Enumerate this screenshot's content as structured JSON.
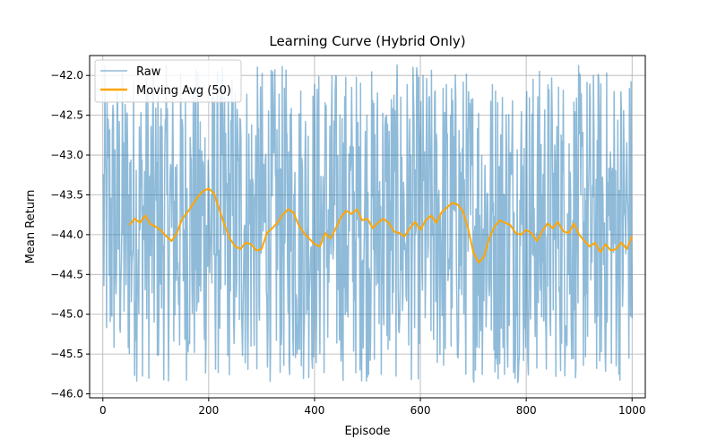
{
  "chart_data": {
    "type": "line",
    "title": "Learning Curve (Hybrid Only)",
    "xlabel": "Episode",
    "ylabel": "Mean Return",
    "xlim": [
      -25,
      1025
    ],
    "ylim": [
      -46.05,
      -41.75
    ],
    "xticks": [
      0,
      200,
      400,
      600,
      800,
      1000
    ],
    "yticks": [
      -46.0,
      -45.5,
      -45.0,
      -44.5,
      -44.0,
      -43.5,
      -43.0,
      -42.5,
      -42.0
    ],
    "xtick_labels": [
      "0",
      "200",
      "400",
      "600",
      "800",
      "1000"
    ],
    "ytick_labels": [
      "−46.0",
      "−45.5",
      "−45.0",
      "−44.5",
      "−44.0",
      "−43.5",
      "−43.0",
      "−42.5",
      "−42.0"
    ],
    "grid": true,
    "legend_position": "top-left",
    "colors": {
      "raw": "#1f77b4",
      "moving_avg": "#ffa500",
      "grid": "#b0b0b0"
    },
    "raw_series": {
      "name": "Raw",
      "x_start": 1,
      "x_end": 1000,
      "count": 1000,
      "min": -45.86,
      "max": -41.86,
      "mean": -43.97,
      "note": "noisy per-episode values spanning roughly -45.8 to -41.9"
    },
    "series": [
      {
        "name": "Moving Avg (50)",
        "x": [
          50,
          60,
          70,
          80,
          90,
          100,
          110,
          120,
          130,
          140,
          150,
          160,
          170,
          180,
          190,
          200,
          210,
          220,
          230,
          240,
          250,
          260,
          270,
          280,
          290,
          300,
          310,
          320,
          330,
          340,
          350,
          360,
          370,
          380,
          390,
          400,
          410,
          420,
          430,
          440,
          450,
          460,
          470,
          480,
          490,
          500,
          510,
          520,
          530,
          540,
          550,
          560,
          570,
          580,
          590,
          600,
          610,
          620,
          630,
          640,
          650,
          660,
          670,
          680,
          690,
          700,
          710,
          720,
          730,
          740,
          750,
          760,
          770,
          780,
          790,
          800,
          810,
          820,
          830,
          840,
          850,
          860,
          870,
          880,
          890,
          900,
          910,
          920,
          930,
          940,
          950,
          960,
          970,
          980,
          990,
          1000
        ],
        "values": [
          -43.88,
          -43.8,
          -43.85,
          -43.76,
          -43.87,
          -43.9,
          -43.95,
          -44.02,
          -44.08,
          -43.98,
          -43.8,
          -43.72,
          -43.62,
          -43.52,
          -43.45,
          -43.42,
          -43.48,
          -43.68,
          -43.88,
          -44.05,
          -44.15,
          -44.18,
          -44.1,
          -44.12,
          -44.2,
          -44.18,
          -43.98,
          -43.92,
          -43.85,
          -43.75,
          -43.68,
          -43.72,
          -43.88,
          -43.98,
          -44.05,
          -44.12,
          -44.15,
          -43.98,
          -44.05,
          -43.92,
          -43.78,
          -43.7,
          -43.74,
          -43.68,
          -43.82,
          -43.8,
          -43.92,
          -43.85,
          -43.8,
          -43.85,
          -43.96,
          -43.98,
          -44.02,
          -43.92,
          -43.84,
          -43.94,
          -43.82,
          -43.76,
          -43.85,
          -43.72,
          -43.66,
          -43.6,
          -43.62,
          -43.7,
          -43.92,
          -44.22,
          -44.35,
          -44.28,
          -44.05,
          -43.9,
          -43.82,
          -43.85,
          -43.88,
          -43.98,
          -44.0,
          -43.94,
          -43.98,
          -44.08,
          -43.96,
          -43.86,
          -43.92,
          -43.84,
          -43.96,
          -43.98,
          -43.86,
          -44.0,
          -44.08,
          -44.15,
          -44.1,
          -44.22,
          -44.12,
          -44.2,
          -44.18,
          -44.1,
          -44.18,
          -44.02
        ],
        "line_width": 2
      }
    ]
  }
}
